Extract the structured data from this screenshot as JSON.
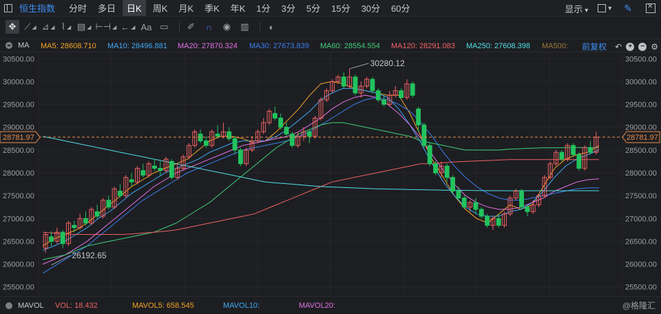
{
  "header": {
    "symbol": "恒生指数",
    "periods": [
      "分时",
      "多日",
      "日K",
      "周K",
      "月K",
      "季K",
      "年K",
      "1分",
      "3分",
      "5分",
      "15分",
      "30分",
      "60分"
    ],
    "active_period": "日K",
    "display_label": "显示"
  },
  "ma_legend": {
    "label": "MA",
    "items": [
      {
        "name": "MA5",
        "text": "MA5: 28608.710",
        "color": "#f5a623"
      },
      {
        "name": "MA10",
        "text": "MA10: 28496.881",
        "color": "#3fa9f5"
      },
      {
        "name": "MA20",
        "text": "MA20: 27870.324",
        "color": "#e472e6"
      },
      {
        "name": "MA30",
        "text": "MA30: 27673.839",
        "color": "#3a7ff0"
      },
      {
        "name": "MA60",
        "text": "MA60: 28554.554",
        "color": "#3fcf7a"
      },
      {
        "name": "MA120",
        "text": "MA120: 28291.083",
        "color": "#f06262"
      },
      {
        "name": "MA250",
        "text": "MA250: 27608.398",
        "color": "#4fe0e6"
      },
      {
        "name": "MA500",
        "text": "MA500:",
        "color": "#9b7a3a"
      }
    ],
    "adjust_label": "前复权"
  },
  "chart_data": {
    "type": "candlestick",
    "y_ticks": [
      "30500.00",
      "30000.00",
      "29500.00",
      "29000.00",
      "28500.00",
      "28000.00",
      "27500.00",
      "27000.00",
      "26500.00",
      "26000.00",
      "25500.00"
    ],
    "ylim": [
      25300,
      30640
    ],
    "current_price": "28781.97",
    "high_annotation": "30280.12",
    "low_annotation": "26192.65",
    "up_color": "#f06262",
    "down_color": "#22c35e",
    "candles": [
      [
        26350,
        26650,
        26700,
        26250
      ],
      [
        26600,
        26500,
        26720,
        26400
      ],
      [
        26500,
        26700,
        26800,
        26450
      ],
      [
        26700,
        26450,
        26750,
        26350
      ],
      [
        26450,
        26900,
        26950,
        26400
      ],
      [
        26850,
        26800,
        26950,
        26700
      ],
      [
        26800,
        27000,
        27100,
        26750
      ],
      [
        27000,
        26900,
        27150,
        26850
      ],
      [
        26900,
        27200,
        27250,
        26850
      ],
      [
        27150,
        27050,
        27300,
        27000
      ],
      [
        27050,
        27400,
        27450,
        27000
      ],
      [
        27400,
        27250,
        27500,
        27200
      ],
      [
        27250,
        27650,
        27700,
        27200
      ],
      [
        27600,
        27500,
        27750,
        27450
      ],
      [
        27500,
        27900,
        27950,
        27450
      ],
      [
        27850,
        27800,
        28000,
        27700
      ],
      [
        27800,
        28100,
        28150,
        27750
      ],
      [
        28050,
        27950,
        28200,
        27900
      ],
      [
        27950,
        28200,
        28250,
        27900
      ],
      [
        28150,
        28100,
        28300,
        28050
      ],
      [
        28100,
        28050,
        28250,
        27950
      ],
      [
        28050,
        28300,
        28350,
        28000
      ],
      [
        28250,
        27900,
        28300,
        27850
      ],
      [
        27900,
        28100,
        28200,
        27850
      ],
      [
        28100,
        28350,
        28400,
        28050
      ],
      [
        28350,
        28600,
        28650,
        28300
      ],
      [
        28600,
        28900,
        28950,
        28550
      ],
      [
        28850,
        28700,
        28950,
        28650
      ],
      [
        28700,
        28600,
        28800,
        28550
      ],
      [
        28600,
        28900,
        28950,
        28550
      ],
      [
        28850,
        28800,
        29050,
        28750
      ],
      [
        28800,
        28900,
        29100,
        28750
      ],
      [
        28900,
        28750,
        29000,
        28700
      ],
      [
        28750,
        28500,
        28800,
        28400
      ],
      [
        28500,
        28200,
        28550,
        28150
      ],
      [
        28200,
        28500,
        28550,
        28150
      ],
      [
        28500,
        28700,
        28800,
        28450
      ],
      [
        28700,
        28900,
        28950,
        28650
      ],
      [
        28900,
        29100,
        29200,
        28850
      ],
      [
        29100,
        29350,
        29400,
        29050
      ],
      [
        29300,
        29200,
        29450,
        29150
      ],
      [
        29200,
        29000,
        29300,
        28950
      ],
      [
        29000,
        28850,
        29100,
        28800
      ],
      [
        28850,
        28600,
        28900,
        28550
      ],
      [
        28600,
        28800,
        28900,
        28550
      ],
      [
        28800,
        28900,
        29000,
        28700
      ],
      [
        28900,
        28800,
        28950,
        28650
      ],
      [
        28800,
        29200,
        29250,
        28750
      ],
      [
        29200,
        29600,
        29650,
        29150
      ],
      [
        29600,
        29800,
        29850,
        29550
      ],
      [
        29800,
        30000,
        30050,
        29750
      ],
      [
        30000,
        30100,
        30150,
        29950
      ],
      [
        30100,
        29900,
        30200,
        29850
      ],
      [
        29900,
        30100,
        30280,
        29850
      ],
      [
        30100,
        29750,
        30150,
        29700
      ],
      [
        29750,
        29900,
        30000,
        29650
      ],
      [
        29900,
        30050,
        30100,
        29850
      ],
      [
        30050,
        29800,
        30100,
        29750
      ],
      [
        29800,
        29600,
        29850,
        29550
      ],
      [
        29600,
        29500,
        29700,
        29450
      ],
      [
        29500,
        29700,
        29800,
        29450
      ],
      [
        29700,
        29800,
        29900,
        29650
      ],
      [
        29800,
        29650,
        29850,
        29600
      ],
      [
        29650,
        29950,
        30050,
        29600
      ],
      [
        29950,
        29700,
        30000,
        29650
      ],
      [
        29400,
        29050,
        29450,
        28900
      ],
      [
        29050,
        28600,
        29100,
        28550
      ],
      [
        28600,
        28200,
        28650,
        28150
      ],
      [
        28200,
        28000,
        28250,
        27950
      ],
      [
        28000,
        28150,
        28250,
        27900
      ],
      [
        28150,
        27900,
        28200,
        27800
      ],
      [
        27900,
        27600,
        27950,
        27550
      ],
      [
        27600,
        27450,
        27700,
        27400
      ],
      [
        27450,
        27250,
        27500,
        27200
      ],
      [
        27250,
        27350,
        27400,
        27150
      ],
      [
        27350,
        27200,
        27450,
        27100
      ],
      [
        27200,
        27050,
        27250,
        27000
      ],
      [
        27050,
        26850,
        27100,
        26800
      ],
      [
        26850,
        27000,
        27050,
        26750
      ],
      [
        27000,
        26850,
        27100,
        26800
      ],
      [
        26850,
        27100,
        27150,
        26800
      ],
      [
        27100,
        27450,
        27500,
        27050
      ],
      [
        27450,
        27600,
        27650,
        27400
      ],
      [
        27600,
        27250,
        27650,
        27200
      ],
      [
        27250,
        27150,
        27300,
        27050
      ],
      [
        27150,
        27300,
        27400,
        27100
      ],
      [
        27300,
        27500,
        27550,
        27250
      ],
      [
        27500,
        27900,
        27950,
        27450
      ],
      [
        27900,
        28200,
        28250,
        27850
      ],
      [
        28200,
        28450,
        28500,
        28150
      ],
      [
        28450,
        28300,
        28500,
        28250
      ],
      [
        28300,
        28600,
        28650,
        28250
      ],
      [
        28600,
        28400,
        28650,
        28350
      ],
      [
        28400,
        28100,
        28450,
        28050
      ],
      [
        28100,
        28550,
        28600,
        28050
      ],
      [
        28550,
        28450,
        28700,
        28400
      ],
      [
        28450,
        28782,
        28900,
        28400
      ]
    ],
    "ma_lines": {
      "MA5": [
        26400,
        26550,
        26650,
        26750,
        26900,
        27100,
        27300,
        27500,
        27700,
        27850,
        28000,
        28100,
        28200,
        28300,
        28500,
        28700,
        28800,
        28800,
        28750,
        28650,
        28700,
        28900,
        29150,
        29400,
        29700,
        29950,
        30000,
        29950,
        29850,
        29800,
        29750,
        29700,
        29700,
        29300,
        28800,
        28300,
        27900,
        27500,
        27200,
        27000,
        26900,
        27100,
        27300,
        27200,
        27300,
        27700,
        28100,
        28300,
        28400,
        28450,
        28600
      ],
      "MA10": [
        26300,
        26400,
        26500,
        26650,
        26800,
        27000,
        27150,
        27350,
        27550,
        27700,
        27850,
        28000,
        28100,
        28200,
        28300,
        28450,
        28550,
        28650,
        28700,
        28700,
        28700,
        28800,
        28950,
        29150,
        29350,
        29600,
        29750,
        29850,
        29850,
        29800,
        29750,
        29650,
        29400,
        29050,
        28650,
        28200,
        27800,
        27500,
        27250,
        27100,
        27050,
        27050,
        27150,
        27200,
        27350,
        27600,
        27900,
        28150,
        28300,
        28400,
        28500
      ],
      "MA20": [
        26000,
        26100,
        26200,
        26350,
        26500,
        26700,
        26900,
        27100,
        27300,
        27500,
        27700,
        27850,
        28000,
        28100,
        28200,
        28300,
        28400,
        28500,
        28600,
        28650,
        28700,
        28750,
        28800,
        28900,
        29050,
        29200,
        29400,
        29550,
        29650,
        29700,
        29650,
        29500,
        29300,
        29050,
        28750,
        28400,
        28050,
        27750,
        27500,
        27350,
        27250,
        27200,
        27200,
        27250,
        27350,
        27450,
        27600,
        27700,
        27800,
        27850,
        27870
      ],
      "MA30": [
        25800,
        25950,
        26100,
        26250,
        26400,
        26600,
        26800,
        27000,
        27200,
        27400,
        27550,
        27700,
        27850,
        28000,
        28100,
        28200,
        28300,
        28400,
        28500,
        28550,
        28600,
        28650,
        28700,
        28800,
        28900,
        29050,
        29200,
        29350,
        29500,
        29600,
        29650,
        29600,
        29500,
        29350,
        29100,
        28800,
        28450,
        28150,
        27900,
        27700,
        27550,
        27450,
        27400,
        27400,
        27450,
        27500,
        27550,
        27600,
        27650,
        27670,
        27674
      ],
      "MA60": [
        26100,
        26150,
        26200,
        26300,
        26400,
        26450,
        26500,
        26550,
        26600,
        26650,
        26700,
        26800,
        26900,
        27050,
        27200,
        27350,
        27550,
        27750,
        27950,
        28150,
        28350,
        28550,
        28700,
        28850,
        28950,
        29050,
        29100,
        29100,
        29050,
        29000,
        28950,
        28900,
        28850,
        28800,
        28700,
        28650,
        28600,
        28550,
        28500,
        28500,
        28500,
        28500,
        28520,
        28530,
        28540,
        28550,
        28550,
        28553,
        28554,
        28554,
        28554
      ],
      "MA120": [
        26700,
        26680,
        26660,
        26650,
        26650,
        26650,
        26650,
        26650,
        26660,
        26680,
        26700,
        26720,
        26750,
        26800,
        26850,
        26900,
        26950,
        27000,
        27050,
        27100,
        27200,
        27300,
        27400,
        27500,
        27600,
        27700,
        27800,
        27850,
        27900,
        27950,
        28000,
        28050,
        28100,
        28150,
        28200,
        28200,
        28220,
        28240,
        28250,
        28260,
        28270,
        28280,
        28290,
        28290,
        28290,
        28291,
        28291,
        28291,
        28291,
        28291,
        28291
      ],
      "MA250": [
        28800,
        28750,
        28700,
        28650,
        28600,
        28550,
        28500,
        28450,
        28400,
        28350,
        28300,
        28250,
        28200,
        28150,
        28100,
        28050,
        28000,
        27950,
        27900,
        27850,
        27800,
        27780,
        27760,
        27740,
        27720,
        27700,
        27690,
        27680,
        27670,
        27660,
        27650,
        27645,
        27640,
        27635,
        27630,
        27625,
        27620,
        27618,
        27615,
        27612,
        27610,
        27609,
        27608,
        27608,
        27608,
        27608,
        27608,
        27608,
        27608,
        27608,
        27608
      ]
    }
  },
  "volume_legend": {
    "label": "MAVOL",
    "vol": "VOL: 18.432",
    "mavol5": "MAVOL5: 658.545",
    "mavol10": "MAVOL10:",
    "mavol20": "MAVOL20:",
    "vol_color": "#f06262",
    "mavol5_color": "#f5a623",
    "mavol10_color": "#3fa9f5",
    "mavol20_color": "#e472e6"
  },
  "watermark": "@格隆汇"
}
